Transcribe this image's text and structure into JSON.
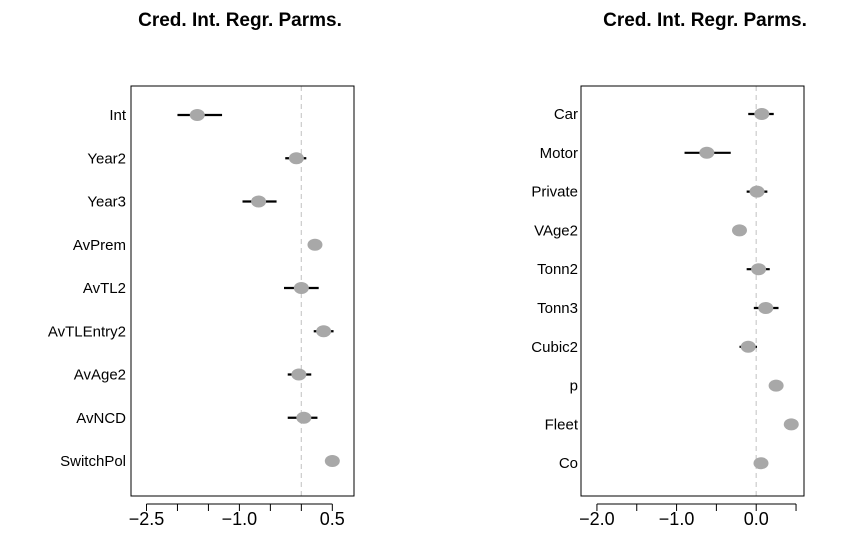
{
  "chart_data": [
    {
      "type": "forest",
      "title": "Cred. Int. Regr. Parms.",
      "xlabel": "",
      "ylabel": "",
      "xlim": [
        -2.75,
        0.85
      ],
      "xticks": [
        -2.5,
        -2.0,
        -1.5,
        -1.0,
        -0.5,
        0.0,
        0.5
      ],
      "xtick_labels": [
        "−2.5",
        "",
        "",
        "−1.0",
        "",
        "",
        "0.5"
      ],
      "reference_line": 0,
      "categories": [
        "Int",
        "Year2",
        "Year3",
        "AvPrem",
        "AvTL2",
        "AvTLEntry2",
        "AvAge2",
        "AvNCD",
        "SwitchPol"
      ],
      "estimates": [
        -1.68,
        -0.08,
        -0.69,
        0.22,
        0.0,
        0.36,
        -0.04,
        0.04,
        0.5
      ],
      "lower": [
        -2.0,
        -0.26,
        -0.95,
        0.2,
        -0.28,
        0.2,
        -0.22,
        -0.22,
        0.48
      ],
      "upper": [
        -1.28,
        0.08,
        -0.4,
        0.24,
        0.28,
        0.52,
        0.16,
        0.26,
        0.52
      ]
    },
    {
      "type": "forest",
      "title": "Cred. Int. Regr. Parms.",
      "xlabel": "",
      "ylabel": "",
      "xlim": [
        -2.2,
        0.6
      ],
      "xticks": [
        -2.0,
        -1.5,
        -1.0,
        -0.5,
        0.0,
        0.5
      ],
      "xtick_labels": [
        "−2.0",
        "",
        "−1.0",
        "",
        "0.0",
        ""
      ],
      "reference_line": 0,
      "categories": [
        "Car",
        "Motor",
        "Private",
        "VAge2",
        "Tonn2",
        "Tonn3",
        "Cubic2",
        "p",
        "Fleet",
        "Co"
      ],
      "estimates": [
        0.07,
        -0.62,
        0.01,
        -0.21,
        0.03,
        0.12,
        -0.1,
        0.25,
        0.44,
        0.06
      ],
      "lower": [
        -0.1,
        -0.9,
        -0.12,
        -0.24,
        -0.12,
        -0.03,
        -0.21,
        0.23,
        0.39,
        0.0
      ],
      "upper": [
        0.22,
        -0.32,
        0.14,
        -0.18,
        0.17,
        0.28,
        0.01,
        0.27,
        0.52,
        0.12
      ]
    }
  ]
}
